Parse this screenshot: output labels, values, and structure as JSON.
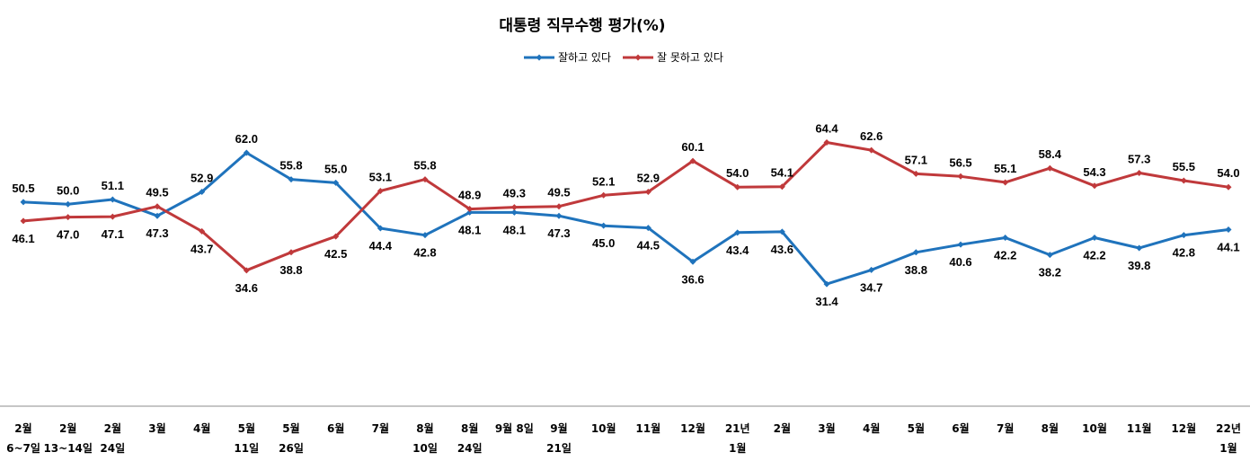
{
  "chart_data": {
    "type": "line",
    "title": "대통령 직무수행 평가(%)",
    "categories": [
      [
        "2월",
        "6~7일"
      ],
      [
        "2월",
        "13~14일"
      ],
      [
        "2월",
        "24일"
      ],
      [
        "3월",
        ""
      ],
      [
        "4월",
        ""
      ],
      [
        "5월",
        "11일"
      ],
      [
        "5월",
        "26일"
      ],
      [
        "6월",
        ""
      ],
      [
        "7월",
        ""
      ],
      [
        "8월",
        "10일"
      ],
      [
        "8월",
        "24일"
      ],
      [
        "9월 8일",
        ""
      ],
      [
        "9월",
        "21일"
      ],
      [
        "10월",
        ""
      ],
      [
        "11월",
        ""
      ],
      [
        "12월",
        ""
      ],
      [
        "21년",
        "1월"
      ],
      [
        "2월",
        ""
      ],
      [
        "3월",
        ""
      ],
      [
        "4월",
        ""
      ],
      [
        "5월",
        ""
      ],
      [
        "6월",
        ""
      ],
      [
        "7월",
        ""
      ],
      [
        "8월",
        ""
      ],
      [
        "10월",
        ""
      ],
      [
        "11월",
        ""
      ],
      [
        "12월",
        ""
      ],
      [
        "22년",
        "1월"
      ]
    ],
    "series": [
      {
        "name": "잘하고 있다",
        "color": "#1F73BC",
        "values": [
          50.5,
          50.0,
          51.1,
          47.3,
          52.9,
          62.0,
          55.8,
          55.0,
          44.4,
          42.8,
          48.1,
          48.1,
          47.3,
          45.0,
          44.5,
          36.6,
          43.4,
          43.6,
          31.4,
          34.7,
          38.8,
          40.6,
          42.2,
          38.2,
          42.2,
          39.8,
          42.8,
          44.1
        ],
        "labels": [
          "50.5",
          "50.0",
          "51.1",
          "47.3",
          "52.9",
          "62.0",
          "55.8",
          "55.0",
          "44.4",
          "42.8",
          "48.1",
          "48.1",
          "47.3",
          "45.0",
          "44.5",
          "36.6",
          "43.4",
          "43.6",
          "31.4",
          "34.7",
          "38.8",
          "40.6",
          "42.2",
          "38.2",
          "42.2",
          "39.8",
          "42.8",
          "44.1"
        ]
      },
      {
        "name": "잘 못하고 있다",
        "color": "#C0393B",
        "values": [
          46.1,
          47.0,
          47.1,
          49.5,
          43.7,
          34.6,
          38.8,
          42.5,
          53.1,
          55.8,
          48.9,
          49.3,
          49.5,
          52.1,
          52.9,
          60.1,
          54.0,
          54.1,
          64.4,
          62.6,
          57.1,
          56.5,
          55.1,
          58.4,
          54.3,
          57.3,
          55.5,
          54.0
        ],
        "labels": [
          "46.1",
          "47.0",
          "47.1",
          "49.5",
          "43.7",
          "34.6",
          "38.8",
          "42.5",
          "53.1",
          "55.8",
          "48.9",
          "49.3",
          "49.5",
          "52.1",
          "52.9",
          "60.1",
          "54.0",
          "54.1",
          "64.4",
          "62.6",
          "57.1",
          "56.5",
          "55.1",
          "58.4",
          "54.3",
          "57.3",
          "55.5",
          "54.0"
        ]
      }
    ],
    "legend_position": "top-center",
    "grid": false
  }
}
